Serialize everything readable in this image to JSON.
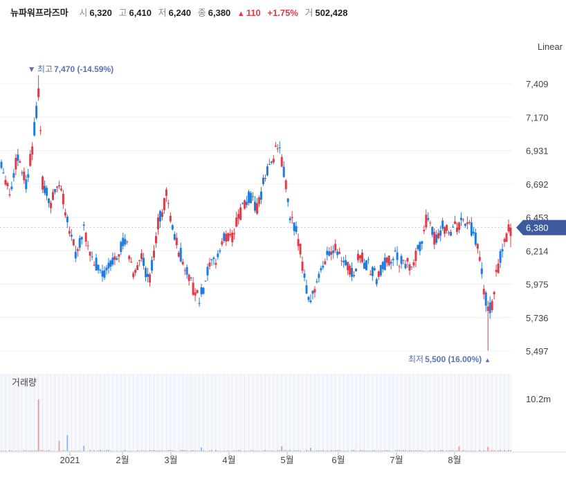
{
  "header": {
    "stock_name": "뉴파워프라즈마",
    "open_label": "시",
    "open_value": "6,320",
    "high_label": "고",
    "high_value": "6,410",
    "low_label": "저",
    "low_value": "6,240",
    "close_label": "종",
    "close_value": "6,380",
    "change_arrow": "▲",
    "change_value": "110",
    "change_percent": "+1.75%",
    "volume_label": "거",
    "volume_value": "502,428"
  },
  "scale_label": "Linear",
  "colors": {
    "up": "#e03c45",
    "down": "#1e7be0",
    "accent": "#3d5a9e",
    "annotation": "#5b72b0"
  },
  "chart_data": {
    "type": "candlestick",
    "price_axis": {
      "ticks": [
        "7,409",
        "7,170",
        "6,931",
        "6,692",
        "6,453",
        "6,214",
        "5,975",
        "5,736",
        "5,497"
      ],
      "tick_values": [
        7409,
        7170,
        6931,
        6692,
        6453,
        6214,
        5975,
        5736,
        5497
      ]
    },
    "x_axis": {
      "ticks": [
        "2021",
        "2월",
        "3월",
        "4월",
        "5월",
        "6월",
        "7월",
        "8월"
      ]
    },
    "last_price_label": "6,380",
    "high_annotation": {
      "arrow": "▼",
      "label": "최고",
      "value": "7,470 (-14.59%)"
    },
    "low_annotation": {
      "label": "최저",
      "value": "5,500 (16.00%)",
      "arrow": "▲"
    },
    "volume": {
      "title": "거래량",
      "tick": "10.2m"
    },
    "anchors": [
      [
        0,
        6860
      ],
      [
        4,
        6620
      ],
      [
        8,
        6900
      ],
      [
        12,
        6700
      ],
      [
        15,
        6950
      ],
      [
        18,
        7350
      ],
      [
        20,
        6700
      ],
      [
        24,
        6550
      ],
      [
        28,
        6700
      ],
      [
        32,
        6450
      ],
      [
        36,
        6200
      ],
      [
        40,
        6350
      ],
      [
        44,
        6150
      ],
      [
        50,
        6050
      ],
      [
        56,
        6200
      ],
      [
        60,
        6300
      ],
      [
        64,
        6050
      ],
      [
        68,
        6150
      ],
      [
        72,
        6000
      ],
      [
        76,
        6400
      ],
      [
        80,
        6600
      ],
      [
        84,
        6300
      ],
      [
        88,
        6150
      ],
      [
        92,
        5980
      ],
      [
        96,
        5850
      ],
      [
        100,
        6050
      ],
      [
        104,
        6150
      ],
      [
        108,
        6300
      ],
      [
        112,
        6320
      ],
      [
        116,
        6480
      ],
      [
        120,
        6600
      ],
      [
        124,
        6500
      ],
      [
        128,
        6750
      ],
      [
        132,
        6900
      ],
      [
        134,
        6960
      ],
      [
        137,
        6780
      ],
      [
        140,
        6450
      ],
      [
        144,
        6300
      ],
      [
        148,
        5950
      ],
      [
        150,
        5880
      ],
      [
        154,
        6000
      ],
      [
        158,
        6200
      ],
      [
        162,
        6260
      ],
      [
        166,
        6150
      ],
      [
        170,
        6050
      ],
      [
        174,
        6170
      ],
      [
        178,
        6100
      ],
      [
        182,
        6020
      ],
      [
        186,
        6120
      ],
      [
        190,
        6180
      ],
      [
        194,
        6130
      ],
      [
        198,
        6100
      ],
      [
        202,
        6200
      ],
      [
        206,
        6430
      ],
      [
        210,
        6300
      ],
      [
        214,
        6400
      ],
      [
        218,
        6350
      ],
      [
        222,
        6400
      ],
      [
        226,
        6430
      ],
      [
        230,
        6300
      ],
      [
        234,
        5950
      ],
      [
        236,
        5780
      ],
      [
        238,
        5820
      ],
      [
        240,
        6030
      ],
      [
        244,
        6300
      ],
      [
        247,
        6380
      ]
    ],
    "volume_spikes": {
      "18": 10.2,
      "32": 3.2,
      "28": 2.1,
      "40": 1.1,
      "97": 0.8,
      "136": 1.0,
      "150": 0.7,
      "222": 1.0,
      "236": 0.9
    }
  }
}
